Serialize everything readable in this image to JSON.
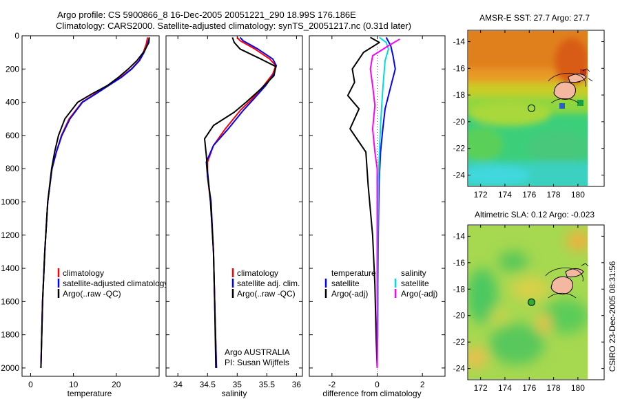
{
  "figure": {
    "title_line1": "Argo profile: CS 5900866_8 16-Dec-2005 20051221_290 18.99S 176.186E",
    "title_line2": "Climatology: CARS2000. Satellite-adjusted climatology: synTS_20051217.nc (0.31d later)",
    "credit": "CSIRO 23-Dec-2005 08:31:56",
    "program": "Argo AUSTRALIA",
    "pi": "PI: Susan Wijffels"
  },
  "colors": {
    "climatology": "#ff0000",
    "satellite_adjusted": "#0000ff",
    "argo": "#000000",
    "sal_satellite": "#00dddd",
    "sal_argo": "#ff00ff",
    "circle_sst": "#00aa00",
    "circle_sla": "#33aa33"
  },
  "chart_data": [
    {
      "type": "line",
      "name": "temperature",
      "xlabel": "temperature",
      "ylabel": "",
      "xlim": [
        -2,
        30
      ],
      "ylim": [
        2050,
        0
      ],
      "xticks": [
        0,
        10,
        20
      ],
      "yticks": [
        0,
        200,
        400,
        600,
        800,
        1000,
        1200,
        1400,
        1600,
        1800,
        2000
      ],
      "legend": [
        "climatology",
        "satellite-adjusted climatology",
        "Argo(..raw -QC)"
      ],
      "series": [
        {
          "name": "climatology",
          "color": "#ff0000",
          "x": [
            27.3,
            27.0,
            26.3,
            25.3,
            23.5,
            21.0,
            18.0,
            15.0,
            12.0,
            9.0,
            7.2,
            6.0,
            5.0,
            4.0,
            3.3,
            2.8,
            2.4
          ],
          "y": [
            10,
            50,
            100,
            150,
            200,
            250,
            300,
            350,
            400,
            500,
            600,
            700,
            800,
            1000,
            1300,
            1600,
            2000
          ]
        },
        {
          "name": "satellite-adjusted climatology",
          "color": "#0000ff",
          "x": [
            27.7,
            27.3,
            26.5,
            25.4,
            23.6,
            21.2,
            18.2,
            15.2,
            12.1,
            9.2,
            7.3,
            6.0,
            5.0,
            4.0,
            3.3,
            2.8,
            2.4
          ],
          "y": [
            10,
            50,
            100,
            150,
            200,
            250,
            300,
            350,
            400,
            500,
            600,
            700,
            800,
            1000,
            1300,
            1600,
            2000
          ]
        },
        {
          "name": "Argo(..raw -QC)",
          "color": "#000000",
          "x": [
            27.7,
            27.6,
            26.6,
            24.8,
            22.8,
            20.5,
            17.9,
            14.3,
            11.0,
            8.0,
            6.5,
            5.6,
            4.9,
            4.0,
            3.3,
            2.8,
            2.4
          ],
          "y": [
            10,
            40,
            90,
            150,
            200,
            250,
            300,
            350,
            400,
            500,
            600,
            700,
            800,
            1000,
            1300,
            1600,
            2000
          ]
        }
      ]
    },
    {
      "type": "line",
      "name": "salinity",
      "xlabel": "salinity",
      "ylabel": "",
      "xlim": [
        33.8,
        36.1
      ],
      "ylim": [
        2050,
        0
      ],
      "xticks": [
        34,
        34.5,
        35,
        35.5,
        36
      ],
      "yticks": [
        0,
        200,
        400,
        600,
        800,
        1000,
        1200,
        1400,
        1600,
        1800,
        2000
      ],
      "legend": [
        "climatology",
        "satellite adj. clim.",
        "Argo(..raw -QC)"
      ],
      "series": [
        {
          "name": "climatology",
          "color": "#ff0000",
          "x": [
            35.0,
            35.05,
            35.3,
            35.55,
            35.65,
            35.6,
            35.45,
            35.25,
            35.05,
            34.8,
            34.6,
            34.5,
            34.5,
            34.55,
            34.6,
            34.62,
            34.65
          ],
          "y": [
            10,
            30,
            80,
            140,
            180,
            230,
            300,
            380,
            450,
            560,
            660,
            760,
            850,
            1000,
            1300,
            1600,
            2000
          ]
        },
        {
          "name": "satellite adj. clim.",
          "color": "#0000ff",
          "x": [
            35.05,
            35.1,
            35.35,
            35.6,
            35.66,
            35.62,
            35.48,
            35.28,
            35.1,
            34.85,
            34.6,
            34.48,
            34.5,
            34.56,
            34.6,
            34.62,
            34.65
          ],
          "y": [
            10,
            30,
            80,
            140,
            180,
            230,
            300,
            380,
            450,
            560,
            660,
            760,
            850,
            1000,
            1300,
            1600,
            2000
          ]
        },
        {
          "name": "Argo(..raw -QC)",
          "color": "#000000",
          "x": [
            34.92,
            34.95,
            35.05,
            35.4,
            35.65,
            35.62,
            35.4,
            35.15,
            34.95,
            34.6,
            34.45,
            34.48,
            34.5,
            34.55,
            34.6,
            34.62,
            34.64
          ],
          "y": [
            10,
            40,
            80,
            140,
            185,
            240,
            320,
            400,
            460,
            540,
            620,
            720,
            820,
            1000,
            1300,
            1600,
            2000
          ]
        }
      ]
    },
    {
      "type": "line",
      "name": "difference",
      "xlabel": "difference from climatology",
      "ylabel": "",
      "xlim": [
        -3.0,
        3.0
      ],
      "ylim": [
        2050,
        0
      ],
      "xticks": [
        -2,
        0,
        2
      ],
      "yticks": [
        0,
        200,
        400,
        600,
        800,
        1000,
        1200,
        1400,
        1600,
        1800,
        2000
      ],
      "legend": [
        "temperature",
        "satellite",
        "Argo(-adj)",
        "salinity",
        "satellite",
        "Argo(-adj)"
      ],
      "series": [
        {
          "name": "temperature satellite",
          "color": "#0000ff",
          "x": [
            0.4,
            0.6,
            0.7,
            0.8,
            0.65,
            0.5,
            0.35,
            0.25,
            0.15,
            0.08,
            0.05,
            0.03,
            0.02,
            0.0
          ],
          "y": [
            10,
            60,
            120,
            200,
            280,
            360,
            440,
            560,
            700,
            900,
            1200,
            1500,
            1800,
            2000
          ]
        },
        {
          "name": "temperature Argo(-adj)",
          "color": "#000000",
          "x": [
            -0.3,
            0.1,
            -0.6,
            -1.1,
            -1.0,
            -1.3,
            -0.8,
            -1.2,
            -0.5,
            -0.4,
            -0.2,
            -0.1,
            -0.05,
            0.0
          ],
          "y": [
            10,
            40,
            100,
            200,
            280,
            360,
            440,
            560,
            700,
            900,
            1200,
            1500,
            1800,
            2000
          ]
        },
        {
          "name": "salinity satellite",
          "color": "#00dddd",
          "x": [
            0.1,
            0.4,
            0.5,
            0.35,
            0.3,
            0.25,
            0.2,
            0.15,
            0.1,
            0.05,
            0.03,
            0.02,
            0.01,
            0.0
          ],
          "y": [
            10,
            40,
            80,
            150,
            230,
            320,
            420,
            540,
            700,
            900,
            1200,
            1500,
            1800,
            2000
          ]
        },
        {
          "name": "salinity Argo(-adj)",
          "color": "#ff00ff",
          "x": [
            1.0,
            0.5,
            -0.2,
            -0.3,
            -0.2,
            -0.1,
            -0.2,
            -0.1,
            0.0,
            0.0,
            0.0,
            0.0,
            0.0,
            0.0
          ],
          "y": [
            20,
            60,
            120,
            200,
            300,
            420,
            560,
            700,
            800,
            900,
            1200,
            1500,
            1800,
            2000
          ]
        }
      ]
    },
    {
      "type": "heatmap",
      "name": "sst_map",
      "title": "AMSR-E SST: 27.7 Argo: 27.7",
      "xlim": [
        171,
        180.8
      ],
      "ylim": [
        -24.8,
        -13.2
      ],
      "xticks": [
        172,
        174,
        176,
        178,
        180
      ],
      "yticks": [
        -14,
        -16,
        -18,
        -20,
        -22,
        -24
      ],
      "argo_position": {
        "lon": 176.186,
        "lat": -18.99
      }
    },
    {
      "type": "heatmap",
      "name": "sla_map",
      "title": "Altimetric SLA: 0.12 Argo: -0.023",
      "xlim": [
        171,
        180.8
      ],
      "ylim": [
        -24.8,
        -13.2
      ],
      "xticks": [
        172,
        174,
        176,
        178,
        180
      ],
      "yticks": [
        -14,
        -16,
        -18,
        -20,
        -22,
        -24
      ],
      "argo_position": {
        "lon": 176.186,
        "lat": -18.99
      }
    }
  ]
}
